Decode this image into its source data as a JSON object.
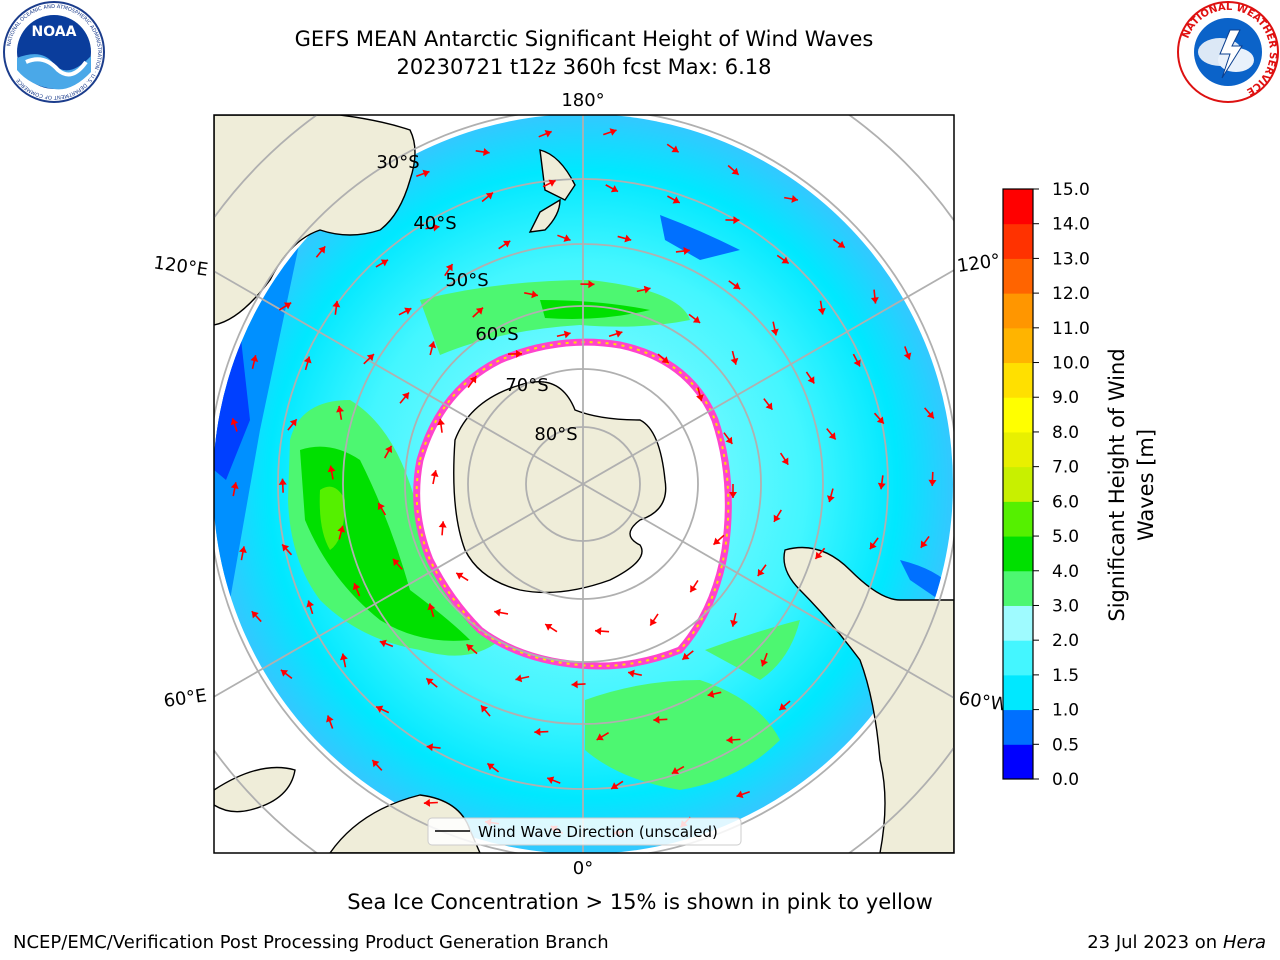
{
  "header": {
    "title_line1": "GEFS MEAN Antarctic Significant Height of Wind Waves",
    "title_line2": "20230721 t12z 360h fcst   Max: 6.18"
  },
  "logos": {
    "left": "noaa-logo",
    "left_text": "NOAA",
    "left_ring_text": "NATIONAL OCEANIC AND ATMOSPHERIC ADMINISTRATION · U.S. DEPARTMENT OF COMMERCE",
    "right": "nws-logo",
    "right_ring_text": "NATIONAL WEATHER SERVICE"
  },
  "map": {
    "projection": "south-polar-stereographic",
    "longitude_labels": {
      "top": "180°",
      "bottom": "0°",
      "left_upper": "120°E",
      "left_lower": "60°E",
      "right_upper": "120°",
      "right_lower": "60°W"
    },
    "latitude_labels": [
      "30°S",
      "40°S",
      "50°S",
      "60°S",
      "70°S",
      "80°S"
    ],
    "legend_label": "Wind Wave Direction (unscaled)"
  },
  "colorbar": {
    "label_line1": "Significant Height of Wind",
    "label_line2": "Waves [m]",
    "ticks": [
      "0.0",
      "0.5",
      "1.0",
      "1.5",
      "2.0",
      "3.0",
      "4.0",
      "5.0",
      "6.0",
      "7.0",
      "8.0",
      "9.0",
      "10.0",
      "11.0",
      "12.0",
      "13.0",
      "14.0",
      "15.0"
    ],
    "colors": [
      "#0000ff",
      "#0070ff",
      "#00e8ff",
      "#44f6ff",
      "#9ffbff",
      "#4df771",
      "#00e000",
      "#55f000",
      "#c8f000",
      "#e8f000",
      "#ffff00",
      "#ffe000",
      "#ffb400",
      "#ff9600",
      "#ff6400",
      "#ff3200",
      "#ff0000"
    ]
  },
  "colors": {
    "land": "#efedd9",
    "ice_edge": "#ff44cc",
    "arrow": "#ff0000",
    "grid": "#b0b0b0"
  },
  "footer": {
    "caption": "Sea Ice Concentration > 15% is shown in pink to yellow",
    "credit": "NCEP/EMC/Verification Post Processing Product Generation Branch",
    "date_prefix": "23 Jul 2023 on ",
    "date_host": "Hera"
  }
}
